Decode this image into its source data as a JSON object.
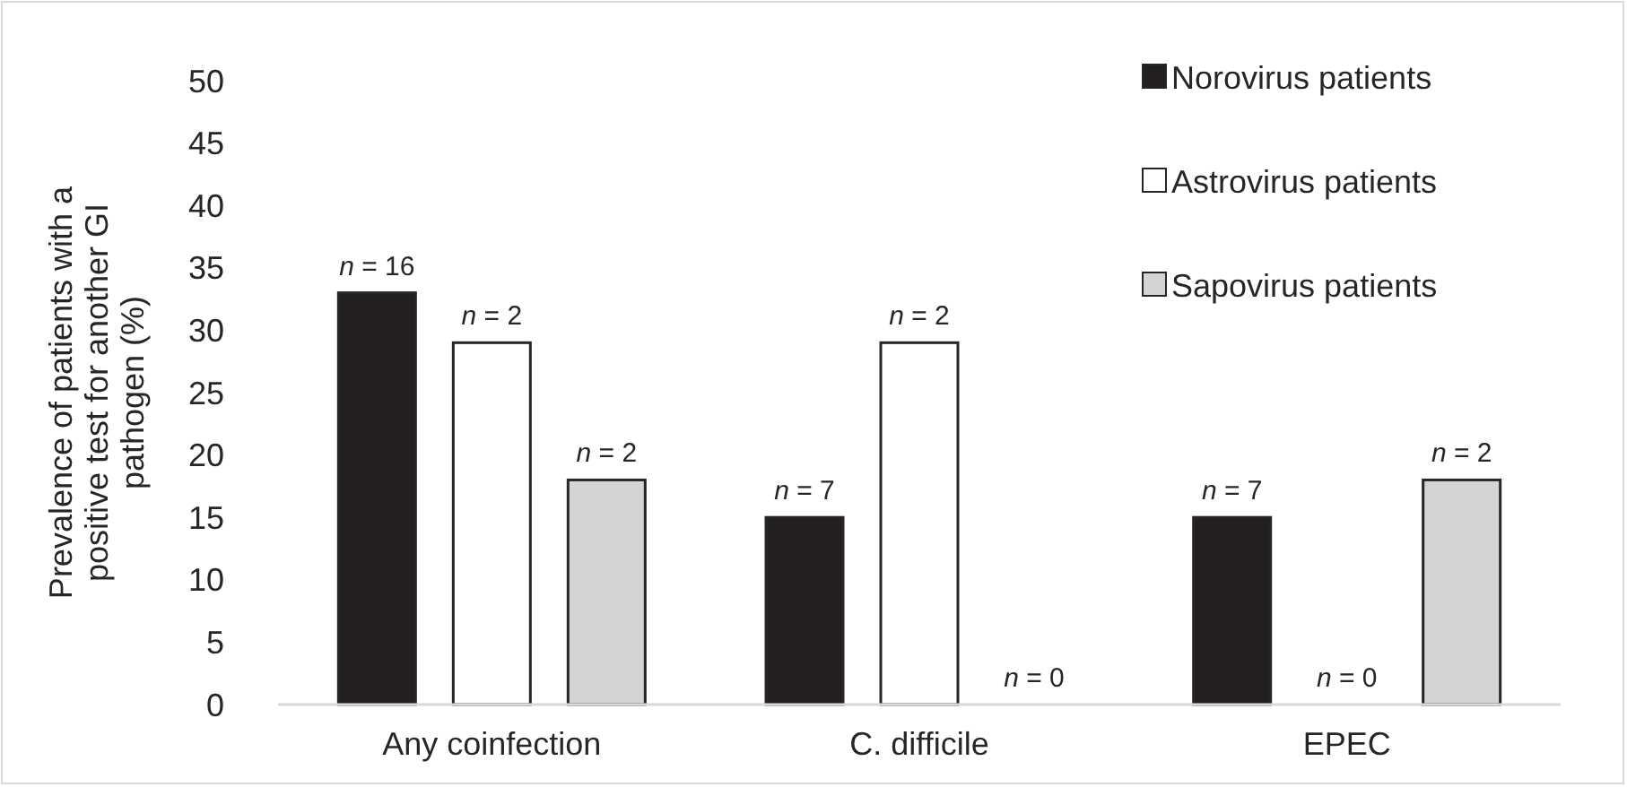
{
  "chart_data": {
    "type": "bar",
    "ylabel": "Prevalence of patients with a positive test for another GI pathogen (%)",
    "categories": [
      "Any coinfection",
      "C. difficile",
      "EPEC"
    ],
    "series": [
      {
        "name": "Norovirus patients",
        "color": "#231f20",
        "values": [
          33,
          15,
          15
        ]
      },
      {
        "name": "Astrovirus patients",
        "color": "#ffffff",
        "values": [
          29,
          29,
          0
        ]
      },
      {
        "name": "Sapovirus patients",
        "color": "#d4d4d4",
        "values": [
          18,
          0,
          18
        ]
      }
    ],
    "annotations": [
      "n = 16",
      "n = 7",
      "n = 7",
      "n = 2",
      "n = 2",
      "n = 0",
      "n = 2",
      "n = 0",
      "n = 2"
    ],
    "ylim": [
      0,
      50
    ],
    "yticks": [
      0,
      5,
      10,
      15,
      20,
      25,
      30,
      35,
      40,
      45,
      50
    ],
    "grid": false,
    "legend": "top right"
  }
}
